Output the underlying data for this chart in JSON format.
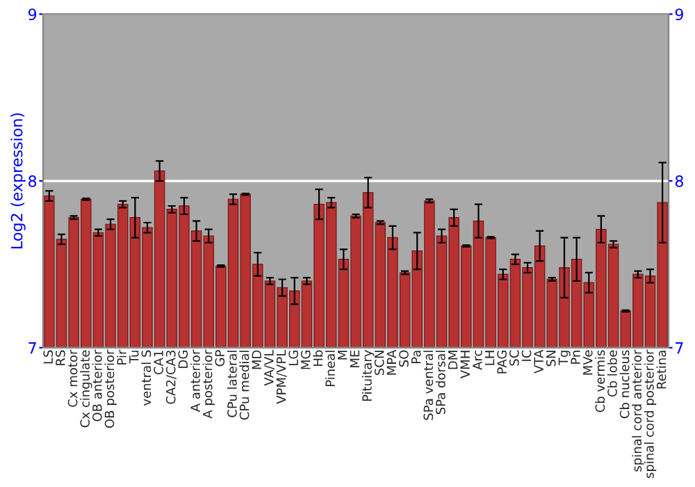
{
  "chart_data": {
    "type": "bar",
    "ylabel": "Log2 (expression)",
    "categories": [
      "LS",
      "RS",
      "Cx motor",
      "Cx cingulate",
      "OB anterior",
      "OB posterior",
      "Pir",
      "Tu",
      "ventral S",
      "CA1",
      "CA2/CA3",
      "DG",
      "A anterior",
      "A posterior",
      "GP",
      "CPu lateral",
      "CPu medial",
      "MD",
      "VA/VL",
      "VPM/VPL",
      "LG",
      "MG",
      "Hb",
      "Pineal",
      "M",
      "ME",
      "Pituitary",
      "SCN",
      "MPA",
      "SO",
      "Pa",
      "SPa ventral",
      "SPa dorsal",
      "DM",
      "VMH",
      "Arc",
      "LH",
      "PAG",
      "SC",
      "IC",
      "VTA",
      "SN",
      "Tg",
      "Pn",
      "MVe",
      "Cb vermis",
      "Cb lobe",
      "Cb nucleus",
      "spinal cord anterior",
      "spinal cord posterior",
      "Retina"
    ],
    "values": [
      7.91,
      7.65,
      7.78,
      7.89,
      7.69,
      7.74,
      7.86,
      7.78,
      7.72,
      8.06,
      7.83,
      7.85,
      7.7,
      7.67,
      7.49,
      7.89,
      7.92,
      7.5,
      7.4,
      7.36,
      7.34,
      7.4,
      7.86,
      7.87,
      7.53,
      7.79,
      7.93,
      7.75,
      7.66,
      7.45,
      7.58,
      7.88,
      7.67,
      7.78,
      7.61,
      7.76,
      7.66,
      7.44,
      7.53,
      7.48,
      7.61,
      7.41,
      7.48,
      7.53,
      7.39,
      7.71,
      7.62,
      7.22,
      7.44,
      7.43,
      7.87
    ],
    "errors": [
      0.03,
      0.03,
      0.01,
      0.005,
      0.02,
      0.03,
      0.02,
      0.12,
      0.03,
      0.06,
      0.02,
      0.05,
      0.06,
      0.04,
      0.005,
      0.03,
      0.005,
      0.07,
      0.02,
      0.05,
      0.08,
      0.02,
      0.09,
      0.03,
      0.06,
      0.01,
      0.09,
      0.01,
      0.07,
      0.01,
      0.11,
      0.01,
      0.04,
      0.05,
      0.005,
      0.1,
      0.005,
      0.03,
      0.03,
      0.03,
      0.09,
      0.01,
      0.18,
      0.13,
      0.06,
      0.08,
      0.02,
      0.005,
      0.02,
      0.04,
      0.24
    ],
    "color": "#b83232",
    "ylim": [
      7,
      9
    ],
    "yticks": [
      7,
      8,
      9
    ],
    "y2lim": [
      7,
      9
    ],
    "y2ticks": [
      7,
      8,
      9
    ],
    "grid": "y"
  }
}
